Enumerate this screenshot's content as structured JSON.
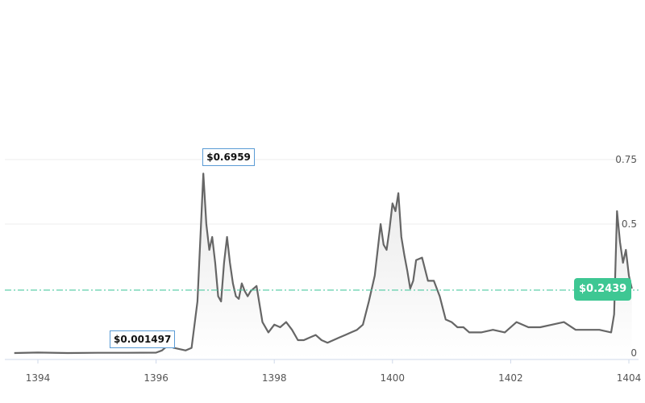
{
  "chart_data": {
    "type": "area",
    "title": "",
    "xlabel": "",
    "ylabel": "",
    "xlim": [
      1393.6,
      1404.05
    ],
    "ylim": [
      0,
      0.75
    ],
    "x_ticks": [
      "1394",
      "1396",
      "1398",
      "1400",
      "1402",
      "1404"
    ],
    "y_ticks": [
      "0",
      "0.5",
      "0.75"
    ],
    "grid": "horizontal",
    "colors": {
      "line": "#666666",
      "area_top": "#e9e9e9",
      "area_bottom": "#ffffff",
      "current_line": "#4ec9a0",
      "badge": "#3ec793",
      "callout_border": "#5a9bd5",
      "grid": "#eeeeee",
      "axis": "#cfd8ea"
    },
    "current_price": {
      "value": 0.2439,
      "label": "$0.2439"
    },
    "annotations": [
      {
        "label": "$0.6959",
        "x": 1396.8,
        "y": 0.6959
      },
      {
        "label": "$0.001497",
        "x": 1395.2,
        "y": 0.001497
      }
    ],
    "series": [
      {
        "x": [
          1393.6,
          1394.0,
          1394.5,
          1395.0,
          1395.5,
          1396.0,
          1396.1,
          1396.2,
          1396.3,
          1396.5,
          1396.6,
          1396.7,
          1396.75,
          1396.8,
          1396.85,
          1396.9,
          1396.95,
          1397.0,
          1397.05,
          1397.1,
          1397.15,
          1397.2,
          1397.25,
          1397.3,
          1397.35,
          1397.4,
          1397.45,
          1397.5,
          1397.55,
          1397.6,
          1397.7,
          1397.8,
          1397.9,
          1398.0,
          1398.1,
          1398.2,
          1398.3,
          1398.4,
          1398.5,
          1398.6,
          1398.7,
          1398.8,
          1398.9,
          1399.0,
          1399.1,
          1399.2,
          1399.3,
          1399.4,
          1399.5,
          1399.6,
          1399.7,
          1399.8,
          1399.85,
          1399.9,
          1399.95,
          1400.0,
          1400.05,
          1400.1,
          1400.15,
          1400.2,
          1400.25,
          1400.3,
          1400.35,
          1400.4,
          1400.5,
          1400.6,
          1400.7,
          1400.8,
          1400.9,
          1401.0,
          1401.1,
          1401.2,
          1401.3,
          1401.4,
          1401.5,
          1401.7,
          1401.9,
          1402.1,
          1402.3,
          1402.5,
          1402.7,
          1402.9,
          1403.1,
          1403.3,
          1403.5,
          1403.7,
          1403.75,
          1403.8,
          1403.85,
          1403.9,
          1403.95,
          1404.0,
          1404.05
        ],
        "values": [
          0.0,
          0.002,
          0.0,
          0.001,
          0.001,
          0.001497,
          0.01,
          0.03,
          0.02,
          0.01,
          0.02,
          0.2,
          0.45,
          0.6959,
          0.5,
          0.4,
          0.45,
          0.35,
          0.22,
          0.2,
          0.35,
          0.45,
          0.35,
          0.27,
          0.22,
          0.21,
          0.27,
          0.24,
          0.22,
          0.24,
          0.26,
          0.12,
          0.08,
          0.11,
          0.1,
          0.12,
          0.09,
          0.05,
          0.05,
          0.06,
          0.07,
          0.05,
          0.04,
          0.05,
          0.06,
          0.07,
          0.08,
          0.09,
          0.11,
          0.2,
          0.3,
          0.5,
          0.42,
          0.4,
          0.48,
          0.58,
          0.55,
          0.62,
          0.45,
          0.38,
          0.32,
          0.25,
          0.28,
          0.36,
          0.37,
          0.28,
          0.28,
          0.22,
          0.13,
          0.12,
          0.1,
          0.1,
          0.08,
          0.08,
          0.08,
          0.09,
          0.08,
          0.12,
          0.1,
          0.1,
          0.11,
          0.12,
          0.09,
          0.09,
          0.09,
          0.08,
          0.15,
          0.55,
          0.43,
          0.35,
          0.4,
          0.3,
          0.25
        ]
      }
    ]
  }
}
